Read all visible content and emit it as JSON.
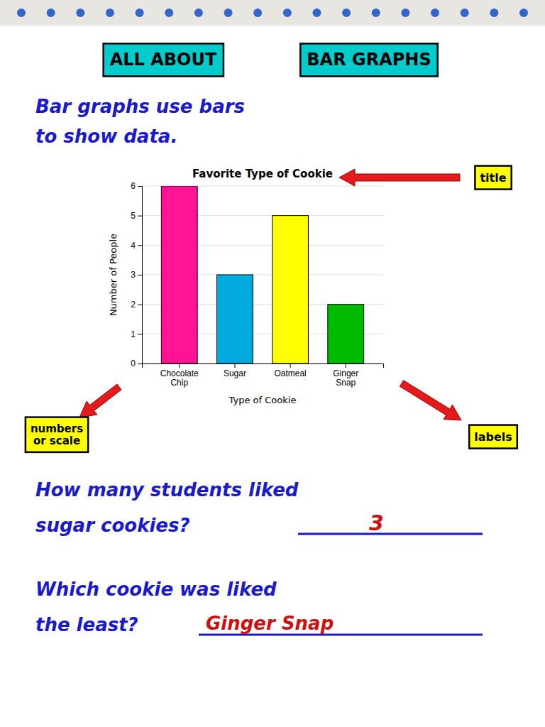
{
  "chart_data": {
    "type": "bar",
    "title": "Favorite Type of Cookie",
    "categories": [
      "Chocolate\nChip",
      "Sugar",
      "Oatmeal",
      "Ginger\nSnap"
    ],
    "values": [
      6,
      3,
      5,
      2
    ],
    "colors": [
      "#FF1493",
      "#00AADD",
      "#FFFF00",
      "#00BB00"
    ],
    "xlabel": "Type of Cookie",
    "ylabel": "Number of People",
    "ylim": [
      0,
      6
    ],
    "yticks": [
      0,
      1,
      2,
      3,
      4,
      5,
      6
    ],
    "grid": true,
    "annotations": [
      "ALL ABOUT",
      "BAR GRAPHS",
      "Bar graphs use bars",
      "to show data.",
      "title",
      "numbers\nor scale",
      "labels",
      "How many students liked",
      "sugar cookies?",
      "3",
      "Which cookie was liked",
      "the least?",
      "Ginger Snap"
    ]
  }
}
